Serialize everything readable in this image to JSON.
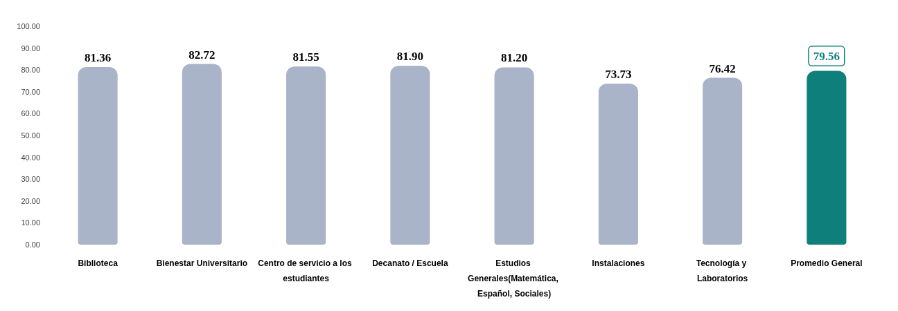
{
  "chart_data": {
    "type": "bar",
    "categories": [
      "Biblioteca",
      "Bienestar Universitario",
      "Centro de servicio a los estudiantes",
      "Decanato / Escuela",
      "Estudios Generales(Matemática, Español, Sociales)",
      "Instalaciones",
      "Tecnología y Laboratorios",
      "Promedio General"
    ],
    "values": [
      81.36,
      82.72,
      81.55,
      81.9,
      81.2,
      73.73,
      76.42,
      79.56
    ],
    "colors": [
      "#a9b4c8",
      "#a9b4c8",
      "#a9b4c8",
      "#a9b4c8",
      "#a9b4c8",
      "#a9b4c8",
      "#a9b4c8",
      "#0e7f7a"
    ],
    "ylim": [
      0,
      100
    ],
    "yticks": [
      {
        "value": 0,
        "label": "0.00"
      },
      {
        "value": 10,
        "label": "10.00"
      },
      {
        "value": 20,
        "label": "20.00"
      },
      {
        "value": 30,
        "label": "30.00"
      },
      {
        "value": 40,
        "label": "40.00"
      },
      {
        "value": 50,
        "label": "50.00"
      },
      {
        "value": 60,
        "label": "60.00"
      },
      {
        "value": 70,
        "label": "70.00"
      },
      {
        "value": 80,
        "label": "80.00"
      },
      {
        "value": 90,
        "label": "90.00"
      },
      {
        "value": 100,
        "label": "100.00"
      }
    ],
    "value_labels": [
      "81.36",
      "82.72",
      "81.55",
      "81.90",
      "81.20",
      "73.73",
      "76.42",
      "79.56"
    ]
  }
}
